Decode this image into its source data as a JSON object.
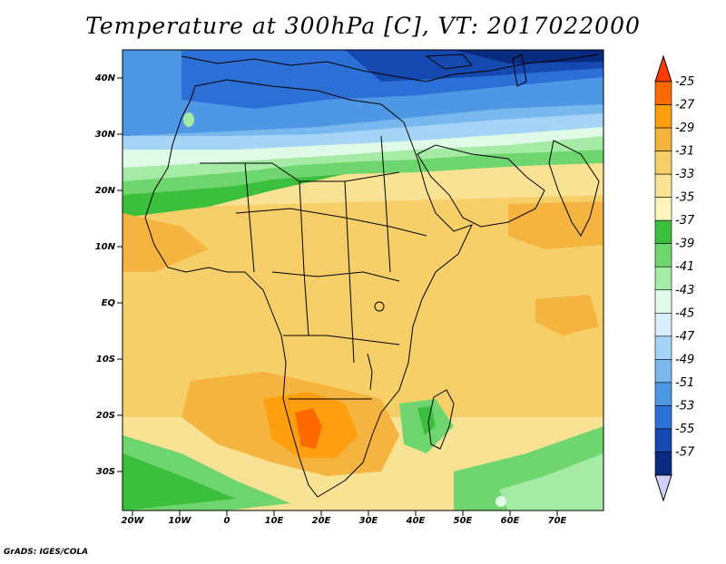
{
  "title": "Temperature at 300hPa [C], VT: 2017022000",
  "credit": "GrADS: IGES/COLA",
  "map": {
    "lat_labels": [
      "40N",
      "30N",
      "20N",
      "10N",
      "EQ",
      "10S",
      "20S",
      "30S"
    ],
    "lon_labels": [
      "20W",
      "10W",
      "0",
      "10E",
      "20E",
      "30E",
      "40E",
      "50E",
      "60E",
      "70E"
    ],
    "region": "Africa, Arabian Peninsula, Mediterranean"
  },
  "colorbar": {
    "levels": [
      "-25",
      "-27",
      "-29",
      "-31",
      "-33",
      "-35",
      "-37",
      "-39",
      "-41",
      "-43",
      "-45",
      "-47",
      "-49",
      "-51",
      "-53",
      "-55",
      "-57"
    ],
    "colors": [
      "#ff3c00",
      "#ff6a00",
      "#ff9f10",
      "#f5b440",
      "#f7cf68",
      "#f9e294",
      "#fdf5bb",
      "#3cbf3c",
      "#6fd66f",
      "#a5eaa5",
      "#e0fae8",
      "#d8eefc",
      "#a6d4f6",
      "#78b8ee",
      "#4d97e4",
      "#2c6fd6",
      "#1649b0",
      "#0a2a80",
      "#d0d0f8"
    ]
  }
}
